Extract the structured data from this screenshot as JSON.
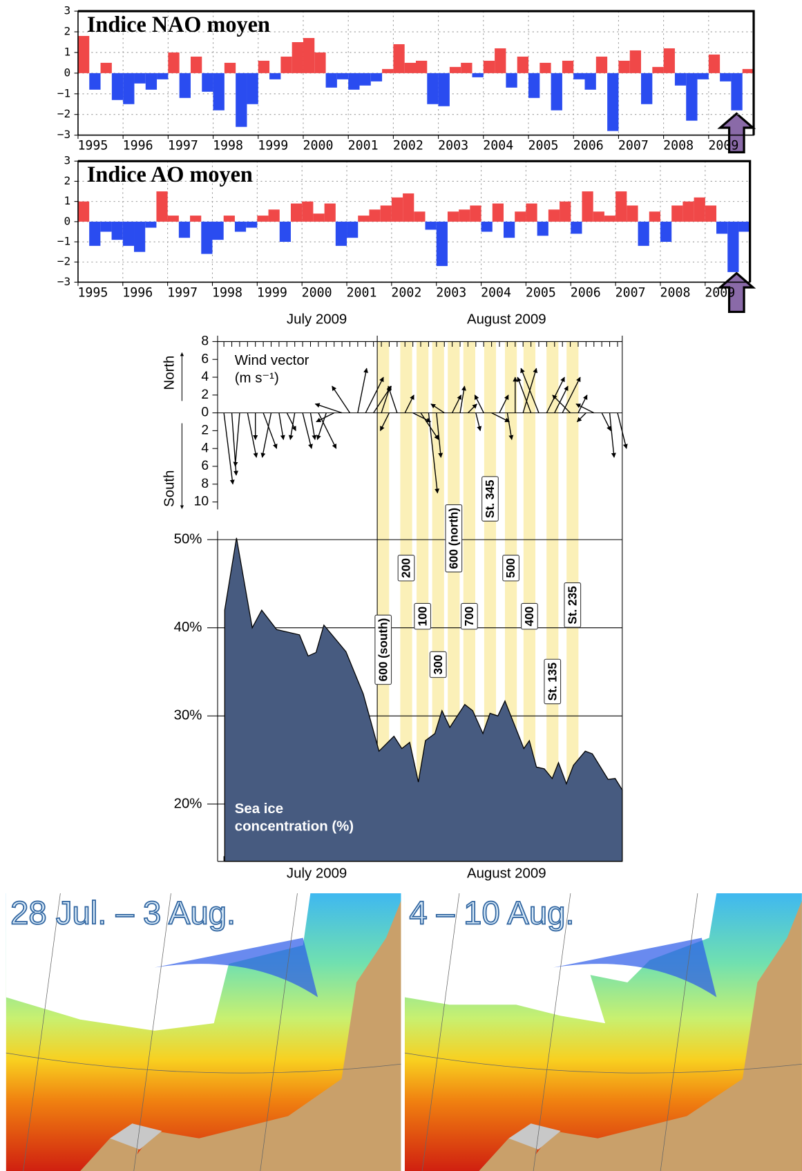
{
  "chart_data": [
    {
      "type": "bar",
      "title": "Indice NAO moyen",
      "x": [
        1995,
        1995.25,
        1995.5,
        1995.75,
        1996,
        1996.25,
        1996.5,
        1996.75,
        1997,
        1997.25,
        1997.5,
        1997.75,
        1998,
        1998.25,
        1998.5,
        1998.75,
        1999,
        1999.25,
        1999.5,
        1999.75,
        2000,
        2000.25,
        2000.5,
        2000.75,
        2001,
        2001.25,
        2001.5,
        2001.75,
        2002,
        2002.25,
        2002.5,
        2002.75,
        2003,
        2003.25,
        2003.5,
        2003.75,
        2004,
        2004.25,
        2004.5,
        2004.75,
        2005,
        2005.25,
        2005.5,
        2005.75,
        2006,
        2006.25,
        2006.5,
        2006.75,
        2007,
        2007.25,
        2007.5,
        2007.75,
        2008,
        2008.25,
        2008.5,
        2008.75,
        2009,
        2009.25,
        2009.5,
        2009.75
      ],
      "values": [
        1.8,
        -0.8,
        0.5,
        -1.3,
        -1.5,
        -0.5,
        -0.8,
        -0.3,
        1.0,
        -1.2,
        0.8,
        -0.9,
        -1.8,
        0.5,
        -2.6,
        -1.5,
        0.6,
        -0.3,
        0.8,
        1.5,
        1.7,
        1.0,
        -0.7,
        -0.3,
        -0.8,
        -0.6,
        -0.4,
        0.2,
        1.4,
        0.5,
        0.6,
        -1.5,
        -1.6,
        0.3,
        0.5,
        -0.2,
        0.6,
        1.2,
        -0.7,
        0.8,
        -1.2,
        0.5,
        -1.8,
        0.6,
        -0.3,
        -0.8,
        0.8,
        -2.8,
        0.6,
        1.1,
        -1.5,
        0.3,
        1.2,
        -0.6,
        -2.3,
        -0.3,
        0.9,
        -0.4,
        -1.8,
        0.2
      ],
      "positive_color": "#f04848",
      "negative_color": "#2a4cf0",
      "grid": true,
      "xlim": [
        1995,
        2010
      ],
      "xticks": [
        1995,
        1996,
        1997,
        1998,
        1999,
        2000,
        2001,
        2002,
        2003,
        2004,
        2005,
        2006,
        2007,
        2008,
        2009
      ],
      "ylim": [
        -3,
        3
      ],
      "yticks": [
        {
          "value": -3,
          "label": "−3"
        },
        {
          "value": -2,
          "label": "−2"
        },
        {
          "value": -1,
          "label": "−1"
        },
        0,
        1,
        2,
        3
      ]
    },
    {
      "type": "bar",
      "title": "Indice AO moyen",
      "x": [
        1995,
        1995.25,
        1995.5,
        1995.75,
        1996,
        1996.25,
        1996.5,
        1996.75,
        1997,
        1997.25,
        1997.5,
        1997.75,
        1998,
        1998.25,
        1998.5,
        1998.75,
        1999,
        1999.25,
        1999.5,
        1999.75,
        2000,
        2000.25,
        2000.5,
        2000.75,
        2001,
        2001.25,
        2001.5,
        2001.75,
        2002,
        2002.25,
        2002.5,
        2002.75,
        2003,
        2003.25,
        2003.5,
        2003.75,
        2004,
        2004.25,
        2004.5,
        2004.75,
        2005,
        2005.25,
        2005.5,
        2005.75,
        2006,
        2006.25,
        2006.5,
        2006.75,
        2007,
        2007.25,
        2007.5,
        2007.75,
        2008,
        2008.25,
        2008.5,
        2008.75,
        2009,
        2009.25,
        2009.5,
        2009.75
      ],
      "values": [
        1.0,
        -1.2,
        -0.5,
        -0.9,
        -1.2,
        -1.5,
        -0.3,
        1.5,
        0.3,
        -0.8,
        0.3,
        -1.6,
        -0.9,
        0.3,
        -0.5,
        -0.3,
        0.3,
        0.6,
        -1.0,
        0.9,
        1.0,
        0.4,
        0.9,
        -1.2,
        -0.8,
        0.3,
        0.6,
        0.8,
        1.2,
        1.4,
        0.5,
        -0.4,
        -2.2,
        0.5,
        0.6,
        0.8,
        -0.5,
        0.9,
        -0.8,
        0.5,
        0.9,
        -0.7,
        0.6,
        1.0,
        -0.6,
        1.5,
        0.5,
        0.3,
        1.5,
        0.8,
        -1.2,
        0.5,
        -1.0,
        0.8,
        1.0,
        1.2,
        0.8,
        -0.6,
        -2.5,
        -0.5
      ],
      "positive_color": "#f04848",
      "negative_color": "#2a4cf0",
      "grid": true,
      "xlim": [
        1995,
        2010
      ],
      "xticks": [
        1995,
        1996,
        1997,
        1998,
        1999,
        2000,
        2001,
        2002,
        2003,
        2004,
        2005,
        2006,
        2007,
        2008,
        2009
      ],
      "ylim": [
        -3,
        3
      ],
      "yticks": [
        {
          "value": -3,
          "label": "−3"
        },
        {
          "value": -2,
          "label": "−2"
        },
        {
          "value": -1,
          "label": "−1"
        },
        0,
        1,
        2,
        3
      ]
    },
    {
      "type": "vector",
      "title": "Wind vector",
      "unit": "(m s⁻¹)",
      "north_label": "North",
      "south_label": "South",
      "x": [
        12,
        13,
        14,
        15,
        16,
        17,
        18,
        19,
        20,
        21,
        22,
        23,
        24,
        25,
        26,
        27,
        28,
        29,
        30,
        31,
        32,
        33,
        34,
        35,
        36,
        37,
        38,
        39,
        40,
        41,
        42,
        43,
        44,
        45,
        46,
        47,
        48,
        49,
        50,
        51,
        52,
        53,
        54,
        55,
        56,
        57,
        58,
        59,
        60,
        61,
        62
      ],
      "u": [
        1,
        0.5,
        -0.5,
        1,
        0,
        1.5,
        -1,
        0.5,
        1,
        -0.5,
        1,
        0.5,
        2,
        -1,
        -2,
        -3,
        -2,
        1,
        2,
        2,
        1,
        -1,
        -1,
        1,
        2,
        2,
        1,
        0.5,
        -1.5,
        1,
        0.5,
        1,
        0.5,
        -1,
        2,
        1,
        0.5,
        0,
        1.5,
        -1.5,
        -2,
        2,
        1.5,
        2,
        -2,
        1,
        -1,
        -2,
        1,
        0.5,
        1
      ],
      "v": [
        -8,
        -7,
        -6,
        -5,
        -3,
        -4,
        -5,
        -3,
        -2,
        -3,
        -4,
        -3,
        -4,
        -3,
        -1,
        1,
        3,
        5,
        4,
        3,
        3,
        -2,
        3,
        2,
        -1,
        -3,
        -9,
        -5,
        1,
        2,
        3,
        1,
        -2,
        2,
        -1,
        2,
        -3,
        4,
        5,
        4,
        5,
        4,
        3,
        4,
        2,
        2,
        -1,
        1,
        -2,
        -5,
        -4
      ],
      "color": "#000000",
      "xlim": [
        11.2,
        62.6
      ],
      "xticks": [
        {
          "value": 23.8,
          "label": "July 2009"
        },
        {
          "value": 47.9,
          "label": "August 2009"
        }
      ],
      "ylim": [
        -10,
        8
      ],
      "yticks": [
        8,
        6,
        4,
        2,
        0,
        {
          "value": -2,
          "label": "2"
        },
        {
          "value": -4,
          "label": "4"
        },
        {
          "value": -6,
          "label": "6"
        },
        {
          "value": -8,
          "label": "8"
        },
        {
          "value": -10,
          "label": "10"
        }
      ]
    },
    {
      "type": "area",
      "label_lines": [
        "Sea ice",
        "concentration (%)"
      ],
      "x": [
        12.1,
        13.6,
        15.6,
        16.8,
        18.7,
        21.6,
        22.7,
        23.7,
        24.7,
        27.5,
        29.7,
        31.7,
        33.6,
        34.6,
        35.6,
        36.7,
        37.6,
        38.8,
        39.7,
        40.7,
        42.6,
        43.6,
        44.9,
        45.8,
        46.8,
        47.7,
        50.1,
        50.8,
        51.7,
        52.7,
        53.7,
        54.5,
        55.5,
        56.4,
        57.9,
        58.8,
        60.8,
        61.7,
        62.6
      ],
      "values": [
        42,
        50.2,
        40,
        42,
        39.8,
        39.2,
        36.8,
        37.2,
        40.3,
        37.3,
        32.5,
        26,
        27.7,
        26.3,
        27,
        22.5,
        27.2,
        28,
        30.6,
        28.7,
        31.3,
        30.6,
        28,
        30.3,
        30,
        31.7,
        26.3,
        27.2,
        24.2,
        24,
        22.9,
        24.7,
        22.3,
        24.4,
        26,
        25.7,
        22.8,
        22.9,
        21.6
      ],
      "color": "#475b80",
      "grid": true,
      "xlim": [
        11.2,
        62.6
      ],
      "xticks": [
        {
          "value": 23.8,
          "label": "July 2009"
        },
        {
          "value": 47.9,
          "label": "August 2009"
        }
      ],
      "ylim": [
        13.5,
        52
      ],
      "yticks": [
        {
          "value": 20,
          "label": "20%"
        },
        {
          "value": 30,
          "label": "30%"
        },
        {
          "value": 40,
          "label": "40%"
        },
        {
          "value": 50,
          "label": "50%"
        }
      ],
      "stations": [
        "600 (south)",
        "200",
        "100",
        "300",
        "600 (north)",
        "700",
        "St. 345",
        "500",
        "400",
        "St. 135",
        "St. 235"
      ]
    }
  ],
  "maps": [
    {
      "title": "28 Jul. – 3 Aug."
    },
    {
      "title": "4 – 10 Aug."
    }
  ]
}
